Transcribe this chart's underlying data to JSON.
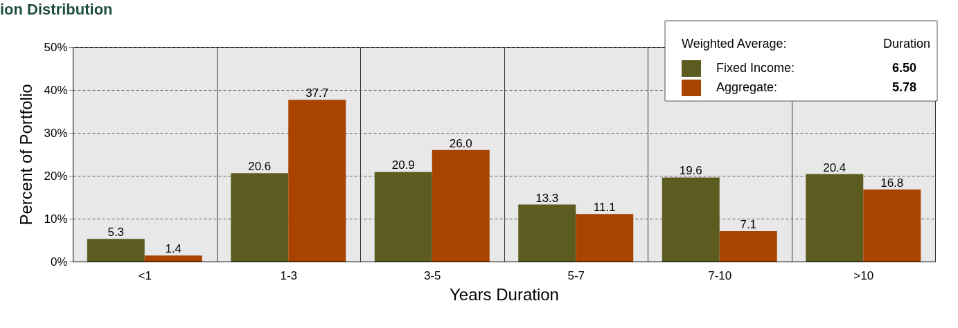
{
  "chart_data": {
    "type": "bar",
    "title": "ion Distribution",
    "xlabel": "Years Duration",
    "ylabel": "Percent of Portfolio",
    "categories": [
      "<1",
      "1-3",
      "3-5",
      "5-7",
      "7-10",
      ">10"
    ],
    "series": [
      {
        "name": "Fixed Income:",
        "color": "#5c5c20",
        "values": [
          5.3,
          20.6,
          20.9,
          13.3,
          19.6,
          20.4
        ]
      },
      {
        "name": "Aggregate:",
        "color": "#a94400",
        "values": [
          1.4,
          37.7,
          26.0,
          11.1,
          7.1,
          16.8
        ]
      }
    ],
    "ylim": [
      0,
      50
    ],
    "yticks": [
      {
        "value": 0,
        "label": "0%"
      },
      {
        "value": 10,
        "label": "10%"
      },
      {
        "value": 20,
        "label": "20%"
      },
      {
        "value": 30,
        "label": "30%"
      },
      {
        "value": 40,
        "label": "40%"
      },
      {
        "value": 50,
        "label": "50%"
      }
    ],
    "grid": true,
    "legend": "top right",
    "legend_title": "Weighted Average:",
    "annotations": [
      "Duration",
      "6.50",
      "5.78"
    ],
    "value_labels": [
      [
        "5.3",
        "20.6",
        "20.9",
        "13.3",
        "19.6",
        "20.4"
      ],
      [
        "1.4",
        "37.7",
        "26.0",
        "11.1",
        "7.1",
        "16.8"
      ]
    ]
  }
}
